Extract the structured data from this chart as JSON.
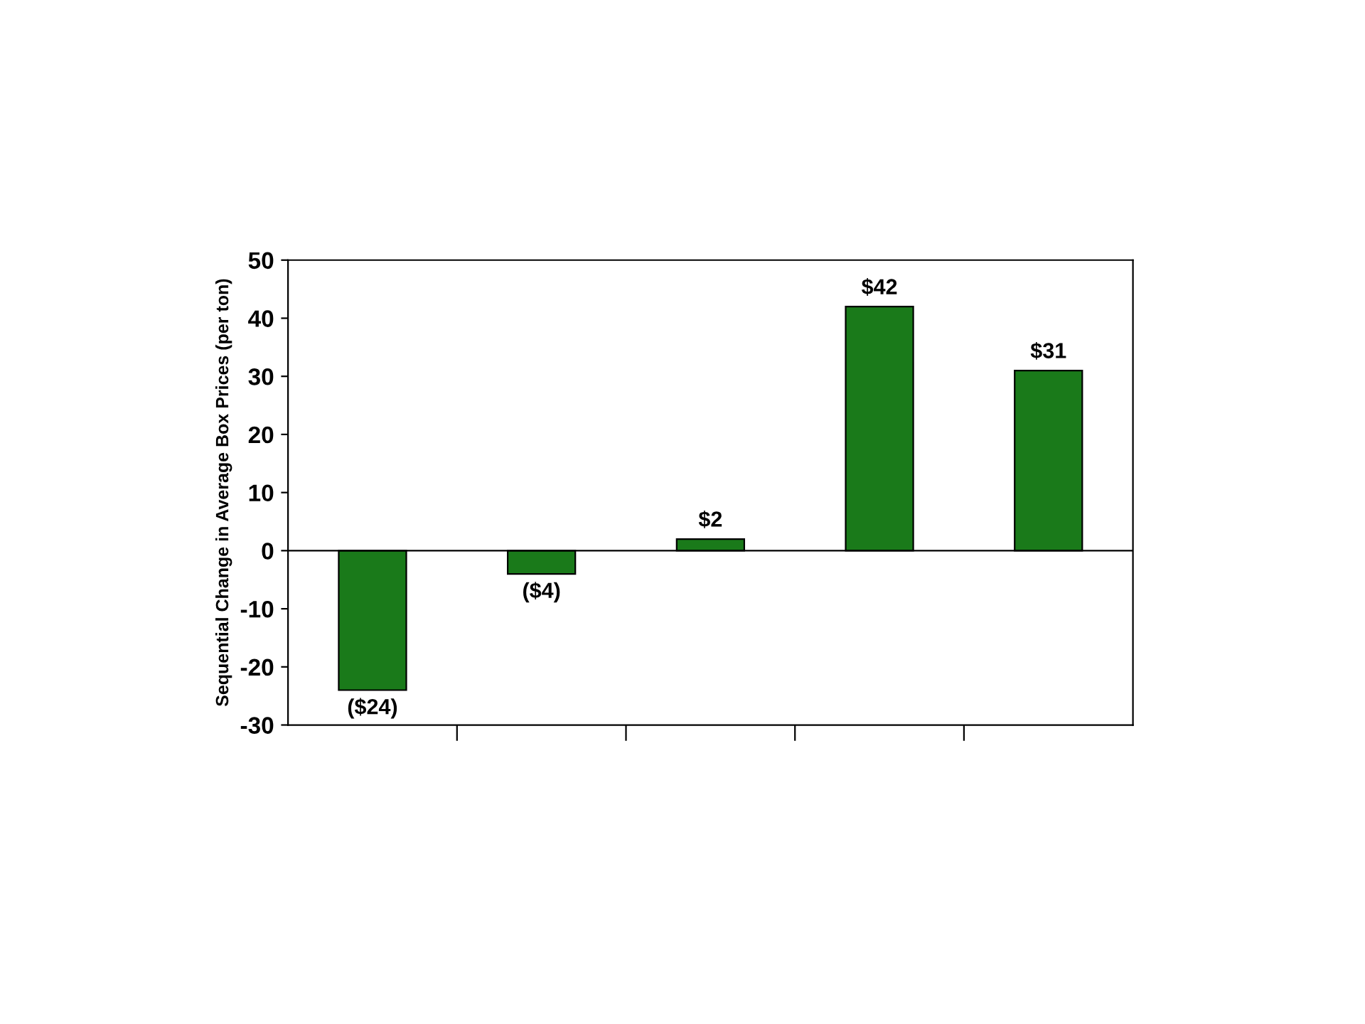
{
  "chart_data": {
    "type": "bar",
    "ylabel": "Sequential Change in Average Box Prices (per ton)",
    "categories": [
      null,
      null,
      null,
      null,
      null
    ],
    "values": [
      -24,
      -4,
      2,
      42,
      31
    ],
    "value_labels": [
      "($24)",
      "($4)",
      "$2",
      "$42",
      "$31"
    ],
    "color": "#1a7a1a",
    "ylim": [
      -30,
      50
    ],
    "yticks": [
      -30,
      -20,
      -10,
      0,
      10,
      20,
      30,
      40,
      50
    ],
    "ref_lines": [
      {
        "axis": "y",
        "value": 0,
        "color": "#000000"
      }
    ],
    "grid": false,
    "legend": false
  }
}
